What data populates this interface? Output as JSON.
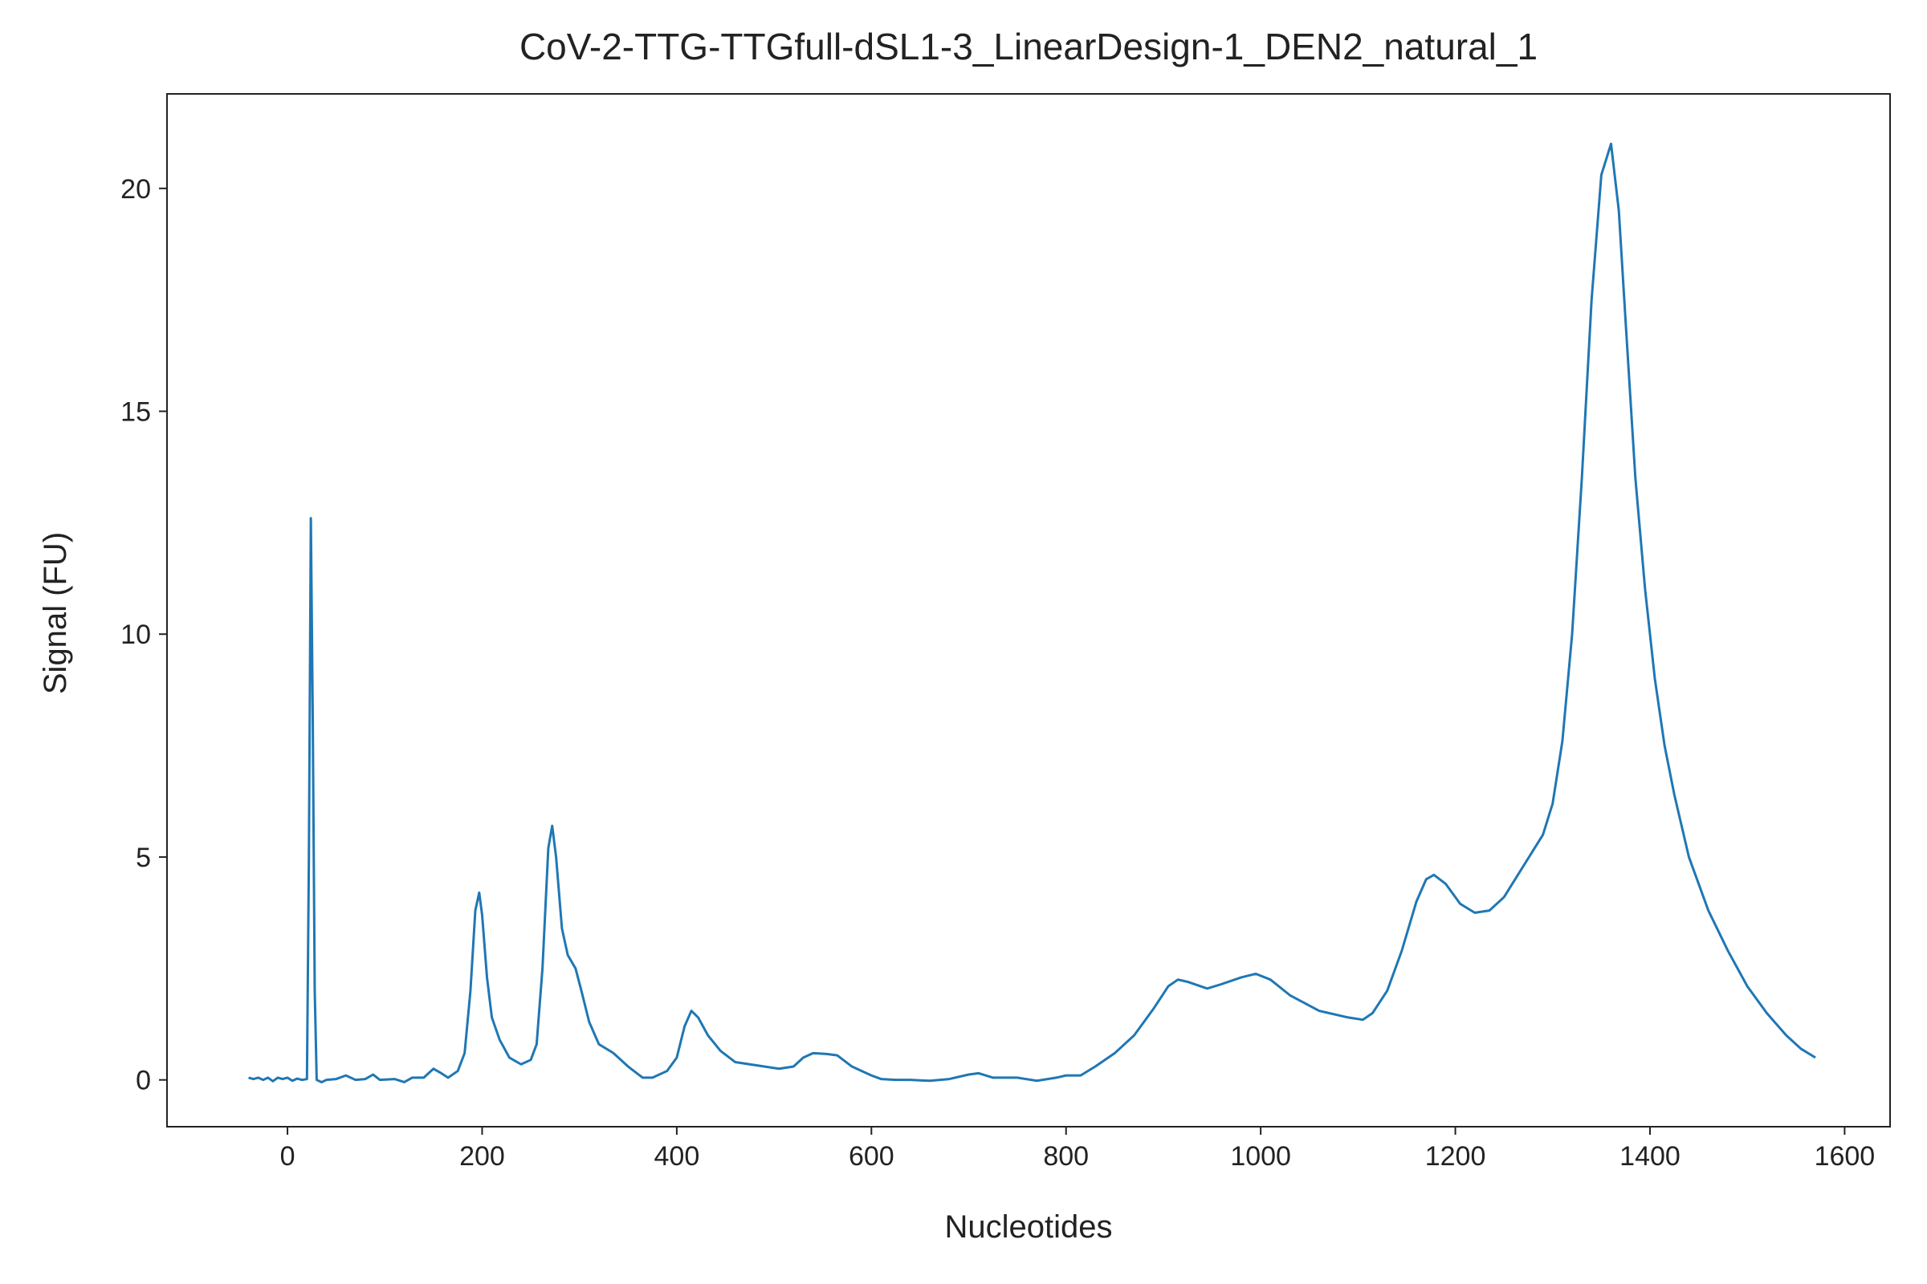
{
  "chart_data": {
    "type": "line",
    "title": "CoV-2-TTG-TTGfull-dSL1-3_LinearDesign-1_DEN2_natural_1",
    "xlabel": "Nucleotides",
    "ylabel": "Signal (FU)",
    "xlim": [
      -123.8,
      1646.7
    ],
    "ylim": [
      -1.05,
      22.12
    ],
    "xticks": [
      0,
      200,
      400,
      600,
      800,
      1000,
      1200,
      1400,
      1600
    ],
    "yticks": [
      0,
      5,
      10,
      15,
      20
    ],
    "grid": false,
    "series": [
      {
        "name": "signal",
        "color": "#1f77b4",
        "x": [
          -40,
          -35,
          -30,
          -25,
          -20,
          -15,
          -10,
          -5,
          0,
          5,
          10,
          15,
          20,
          22,
          24,
          26,
          28,
          30,
          35,
          40,
          50,
          60,
          70,
          80,
          88,
          95,
          110,
          120,
          128,
          140,
          150,
          158,
          165,
          175,
          182,
          188,
          193,
          197,
          200,
          205,
          210,
          218,
          228,
          240,
          250,
          256,
          262,
          268,
          272,
          276,
          282,
          288,
          296,
          302,
          310,
          320,
          335,
          350,
          365,
          375,
          390,
          400,
          408,
          415,
          422,
          432,
          445,
          460,
          475,
          490,
          505,
          520,
          530,
          540,
          555,
          565,
          580,
          600,
          610,
          625,
          640,
          660,
          680,
          700,
          710,
          725,
          750,
          770,
          790,
          800,
          815,
          830,
          850,
          870,
          890,
          905,
          915,
          925,
          945,
          960,
          980,
          995,
          1010,
          1030,
          1060,
          1090,
          1105,
          1115,
          1130,
          1145,
          1160,
          1170,
          1178,
          1190,
          1205,
          1220,
          1235,
          1250,
          1270,
          1290,
          1300,
          1310,
          1320,
          1330,
          1340,
          1350,
          1360,
          1368,
          1375,
          1385,
          1395,
          1405,
          1415,
          1425,
          1440,
          1460,
          1480,
          1500,
          1520,
          1540,
          1555,
          1570
        ],
        "values": [
          0.05,
          0.02,
          0.05,
          0,
          0.05,
          -0.03,
          0.05,
          0.02,
          0.05,
          -0.02,
          0.03,
          0,
          0.02,
          5,
          12.6,
          8,
          2,
          0,
          -0.05,
          0,
          0.02,
          0.1,
          0,
          0.02,
          0.12,
          0,
          0.02,
          -0.05,
          0.05,
          0.05,
          0.25,
          0.15,
          0.05,
          0.2,
          0.6,
          2.0,
          3.8,
          4.2,
          3.7,
          2.3,
          1.4,
          0.9,
          0.5,
          0.35,
          0.45,
          0.8,
          2.5,
          5.2,
          5.7,
          5.0,
          3.4,
          2.8,
          2.5,
          2.0,
          1.3,
          0.8,
          0.6,
          0.3,
          0.05,
          0.05,
          0.2,
          0.5,
          1.2,
          1.55,
          1.4,
          1.0,
          0.65,
          0.4,
          0.35,
          0.3,
          0.25,
          0.3,
          0.5,
          0.6,
          0.58,
          0.55,
          0.3,
          0.1,
          0.02,
          0,
          0,
          -0.02,
          0.02,
          0.12,
          0.15,
          0.05,
          0.05,
          -0.02,
          0.05,
          0.1,
          0.1,
          0.3,
          0.6,
          1.0,
          1.6,
          2.1,
          2.25,
          2.2,
          2.05,
          2.15,
          2.3,
          2.38,
          2.25,
          1.9,
          1.55,
          1.4,
          1.35,
          1.5,
          2.0,
          2.9,
          4.0,
          4.5,
          4.6,
          4.4,
          3.95,
          3.75,
          3.8,
          4.1,
          4.8,
          5.5,
          6.2,
          7.6,
          10,
          13.5,
          17.5,
          20.3,
          21.0,
          19.5,
          17,
          13.5,
          11,
          9,
          7.5,
          6.4,
          5,
          3.8,
          2.9,
          2.1,
          1.5,
          1.0,
          0.7,
          0.5
        ]
      }
    ]
  }
}
